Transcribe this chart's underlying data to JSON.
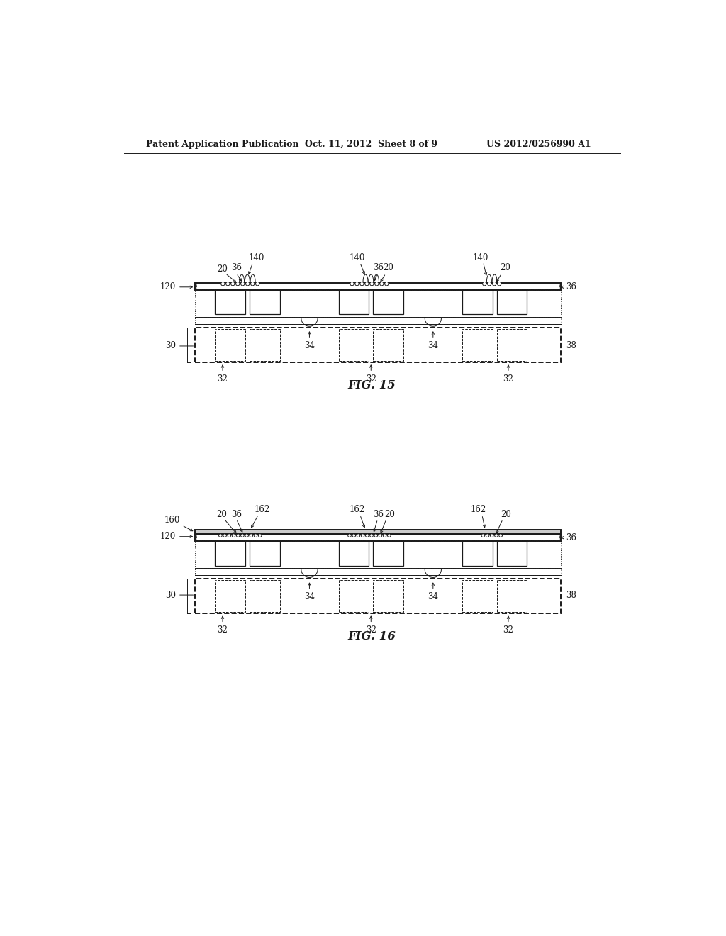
{
  "bg_color": "#ffffff",
  "header_left": "Patent Application Publication",
  "header_mid": "Oct. 11, 2012  Sheet 8 of 9",
  "header_right": "US 2012/0256990 A1",
  "fig15_label": "FIG. 15",
  "fig16_label": "FIG. 16",
  "color": "#1a1a1a",
  "lw_outer": 1.4,
  "lw_inner": 0.9,
  "lw_thin": 0.7,
  "fs_label": 8.5,
  "fs_header": 9.0,
  "fs_fig": 12
}
